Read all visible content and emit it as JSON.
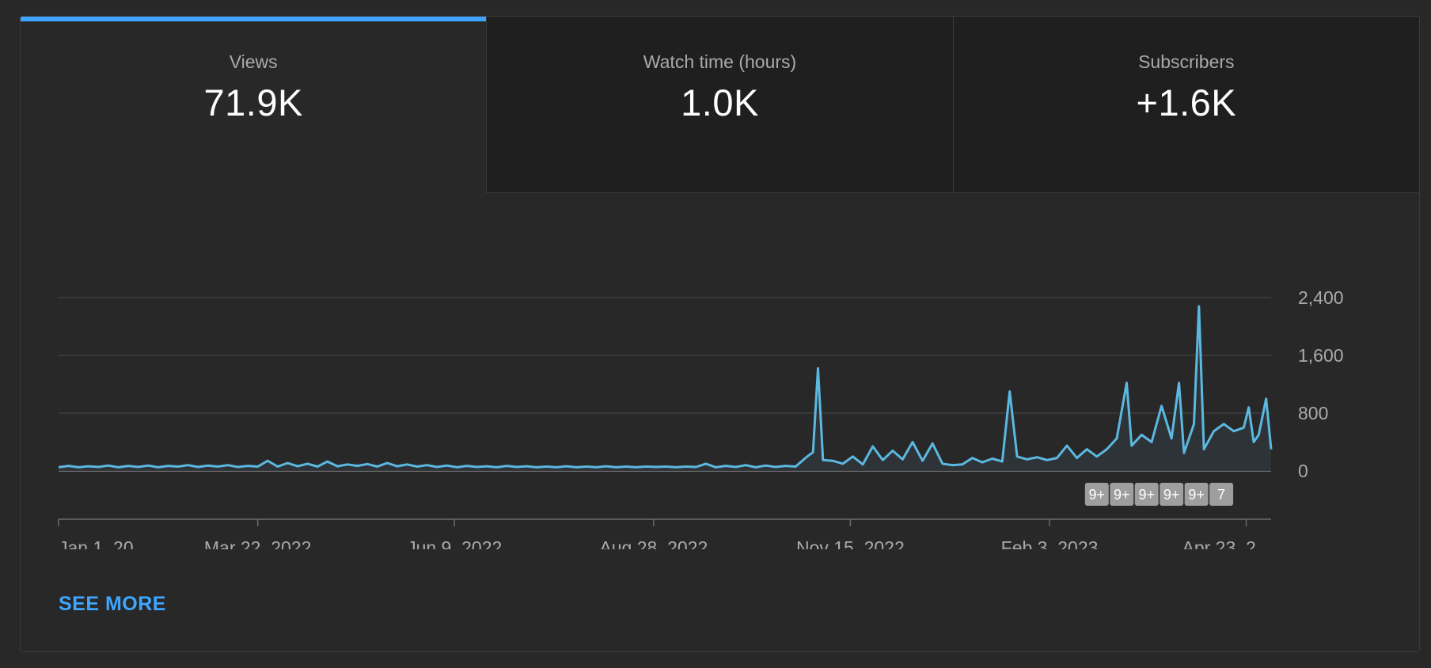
{
  "tabs": [
    {
      "label": "Views",
      "value": "71.9K",
      "active": true
    },
    {
      "label": "Watch time (hours)",
      "value": "1.0K",
      "active": false
    },
    {
      "label": "Subscribers",
      "value": "+1.6K",
      "active": false
    }
  ],
  "colors": {
    "accent": "#3ea6ff",
    "line": "#5bb8e0",
    "area": "#2f3438",
    "grid": "#3d3d3d",
    "badge": "#9e9e9e",
    "axis_text": "#aaaaaa"
  },
  "chart_data": {
    "type": "area",
    "title": "",
    "xlabel": "",
    "ylabel": "",
    "series_name": "",
    "ylim": [
      0,
      2400
    ],
    "yticks": [
      0,
      800,
      1600,
      2400
    ],
    "ytick_labels": [
      "0",
      "800",
      "1,600",
      "2,400"
    ],
    "xlim": [
      "2022-01-01",
      "2023-05-03"
    ],
    "xtick_dates": [
      "2022-01-01",
      "2022-03-22",
      "2022-06-09",
      "2022-08-28",
      "2022-11-15",
      "2023-02-03",
      "2023-04-23"
    ],
    "xtick_labels": [
      "Jan 1, 20...",
      "Mar 22, 2022",
      "Jun 9, 2022",
      "Aug 28, 2022",
      "Nov 15, 2022",
      "Feb 3, 2023",
      "Apr 23, 2..."
    ],
    "grid": true,
    "points": [
      [
        "2022-01-01",
        50
      ],
      [
        "2022-01-05",
        70
      ],
      [
        "2022-01-09",
        50
      ],
      [
        "2022-01-13",
        65
      ],
      [
        "2022-01-17",
        55
      ],
      [
        "2022-01-21",
        75
      ],
      [
        "2022-01-25",
        50
      ],
      [
        "2022-01-29",
        70
      ],
      [
        "2022-02-02",
        55
      ],
      [
        "2022-02-06",
        75
      ],
      [
        "2022-02-10",
        50
      ],
      [
        "2022-02-14",
        70
      ],
      [
        "2022-02-18",
        60
      ],
      [
        "2022-02-22",
        80
      ],
      [
        "2022-02-26",
        55
      ],
      [
        "2022-03-02",
        75
      ],
      [
        "2022-03-06",
        60
      ],
      [
        "2022-03-10",
        80
      ],
      [
        "2022-03-14",
        55
      ],
      [
        "2022-03-18",
        70
      ],
      [
        "2022-03-22",
        60
      ],
      [
        "2022-03-26",
        140
      ],
      [
        "2022-03-30",
        60
      ],
      [
        "2022-04-03",
        110
      ],
      [
        "2022-04-07",
        65
      ],
      [
        "2022-04-11",
        100
      ],
      [
        "2022-04-15",
        60
      ],
      [
        "2022-04-19",
        130
      ],
      [
        "2022-04-23",
        65
      ],
      [
        "2022-04-27",
        90
      ],
      [
        "2022-05-01",
        70
      ],
      [
        "2022-05-05",
        95
      ],
      [
        "2022-05-09",
        60
      ],
      [
        "2022-05-13",
        110
      ],
      [
        "2022-05-17",
        65
      ],
      [
        "2022-05-21",
        90
      ],
      [
        "2022-05-25",
        60
      ],
      [
        "2022-05-29",
        80
      ],
      [
        "2022-06-02",
        55
      ],
      [
        "2022-06-06",
        75
      ],
      [
        "2022-06-10",
        50
      ],
      [
        "2022-06-14",
        70
      ],
      [
        "2022-06-18",
        55
      ],
      [
        "2022-06-22",
        65
      ],
      [
        "2022-06-26",
        50
      ],
      [
        "2022-06-30",
        70
      ],
      [
        "2022-07-04",
        55
      ],
      [
        "2022-07-08",
        65
      ],
      [
        "2022-07-12",
        50
      ],
      [
        "2022-07-16",
        60
      ],
      [
        "2022-07-20",
        50
      ],
      [
        "2022-07-24",
        65
      ],
      [
        "2022-07-28",
        50
      ],
      [
        "2022-08-01",
        60
      ],
      [
        "2022-08-05",
        50
      ],
      [
        "2022-08-09",
        65
      ],
      [
        "2022-08-13",
        50
      ],
      [
        "2022-08-17",
        60
      ],
      [
        "2022-08-21",
        50
      ],
      [
        "2022-08-25",
        60
      ],
      [
        "2022-08-29",
        55
      ],
      [
        "2022-09-02",
        60
      ],
      [
        "2022-09-06",
        50
      ],
      [
        "2022-09-10",
        60
      ],
      [
        "2022-09-14",
        55
      ],
      [
        "2022-09-18",
        100
      ],
      [
        "2022-09-22",
        50
      ],
      [
        "2022-09-26",
        70
      ],
      [
        "2022-09-30",
        55
      ],
      [
        "2022-10-04",
        80
      ],
      [
        "2022-10-08",
        50
      ],
      [
        "2022-10-12",
        75
      ],
      [
        "2022-10-16",
        55
      ],
      [
        "2022-10-20",
        70
      ],
      [
        "2022-10-24",
        60
      ],
      [
        "2022-10-28",
        180
      ],
      [
        "2022-10-31",
        260
      ],
      [
        "2022-11-02",
        1420
      ],
      [
        "2022-11-04",
        150
      ],
      [
        "2022-11-08",
        140
      ],
      [
        "2022-11-12",
        100
      ],
      [
        "2022-11-16",
        200
      ],
      [
        "2022-11-20",
        90
      ],
      [
        "2022-11-24",
        340
      ],
      [
        "2022-11-28",
        150
      ],
      [
        "2022-12-02",
        280
      ],
      [
        "2022-12-06",
        160
      ],
      [
        "2022-12-10",
        400
      ],
      [
        "2022-12-14",
        140
      ],
      [
        "2022-12-18",
        380
      ],
      [
        "2022-12-22",
        100
      ],
      [
        "2022-12-26",
        80
      ],
      [
        "2022-12-30",
        90
      ],
      [
        "2023-01-03",
        180
      ],
      [
        "2023-01-07",
        120
      ],
      [
        "2023-01-11",
        170
      ],
      [
        "2023-01-15",
        130
      ],
      [
        "2023-01-18",
        1100
      ],
      [
        "2023-01-21",
        200
      ],
      [
        "2023-01-25",
        160
      ],
      [
        "2023-01-29",
        190
      ],
      [
        "2023-02-02",
        150
      ],
      [
        "2023-02-06",
        180
      ],
      [
        "2023-02-10",
        350
      ],
      [
        "2023-02-14",
        180
      ],
      [
        "2023-02-18",
        300
      ],
      [
        "2023-02-22",
        200
      ],
      [
        "2023-02-26",
        300
      ],
      [
        "2023-03-02",
        450
      ],
      [
        "2023-03-06",
        1220
      ],
      [
        "2023-03-08",
        350
      ],
      [
        "2023-03-12",
        500
      ],
      [
        "2023-03-16",
        400
      ],
      [
        "2023-03-20",
        900
      ],
      [
        "2023-03-24",
        450
      ],
      [
        "2023-03-27",
        1220
      ],
      [
        "2023-03-29",
        250
      ],
      [
        "2023-04-02",
        650
      ],
      [
        "2023-04-04",
        2280
      ],
      [
        "2023-04-06",
        300
      ],
      [
        "2023-04-10",
        550
      ],
      [
        "2023-04-14",
        650
      ],
      [
        "2023-04-18",
        550
      ],
      [
        "2023-04-22",
        600
      ],
      [
        "2023-04-24",
        880
      ],
      [
        "2023-04-26",
        400
      ],
      [
        "2023-04-28",
        500
      ],
      [
        "2023-05-01",
        1000
      ],
      [
        "2023-05-03",
        300
      ]
    ],
    "markers": [
      {
        "date": "2023-02-22",
        "label": "9+"
      },
      {
        "date": "2023-03-04",
        "label": "9+"
      },
      {
        "date": "2023-03-14",
        "label": "9+"
      },
      {
        "date": "2023-03-24",
        "label": "9+"
      },
      {
        "date": "2023-04-03",
        "label": "9+"
      },
      {
        "date": "2023-04-13",
        "label": "7"
      }
    ]
  },
  "see_more_label": "SEE MORE"
}
